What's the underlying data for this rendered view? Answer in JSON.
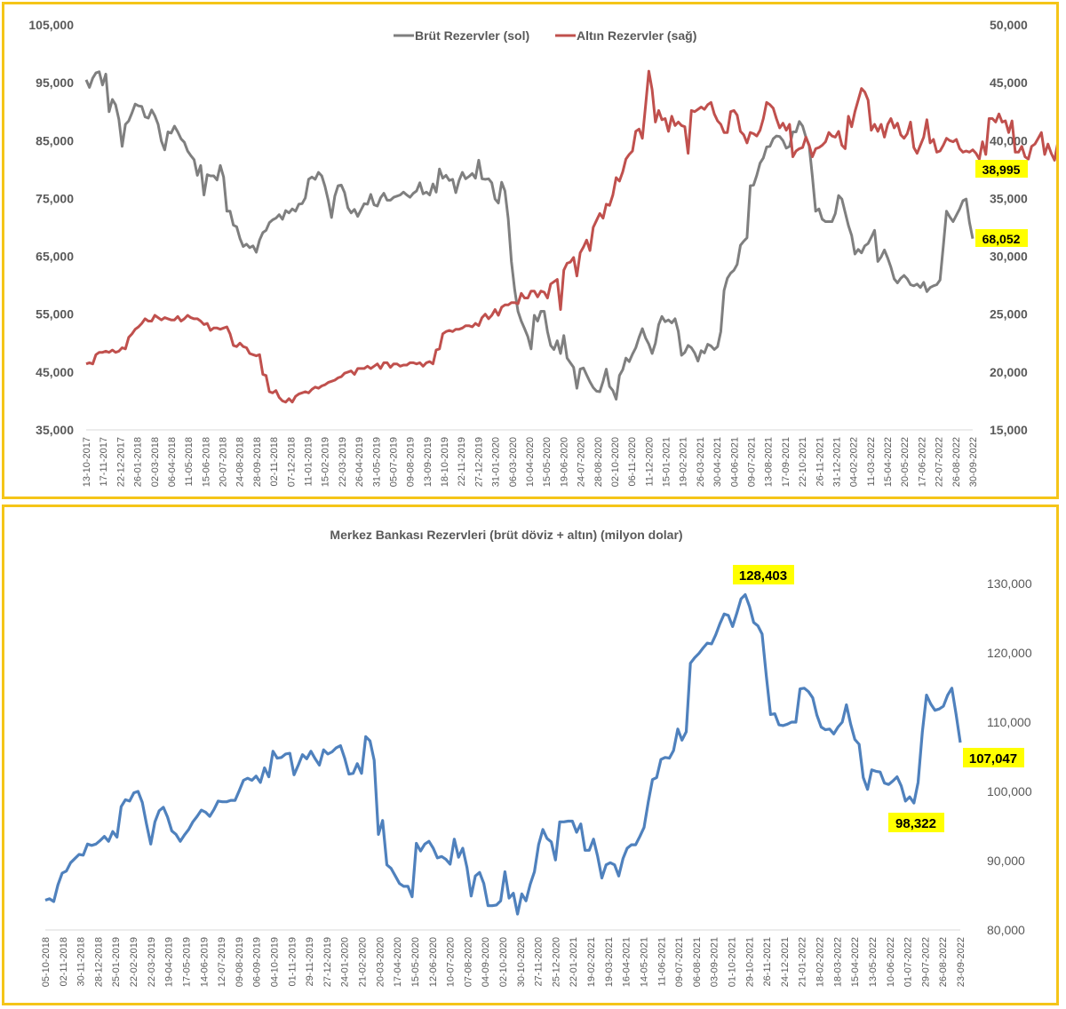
{
  "colors": {
    "frame": "#f5c518",
    "gross": "#7f7f7f",
    "gold": "#c0504d",
    "total": "#4f81bd",
    "highlight": "#ffff00",
    "axis_text": "#595959"
  },
  "chart_data": [
    {
      "type": "line",
      "title": "",
      "legend_position": "top-center",
      "y_left": {
        "lim": [
          35000,
          105000
        ],
        "ticks": [
          "35,000",
          "45,000",
          "55,000",
          "65,000",
          "75,000",
          "85,000",
          "95,000",
          "105,000"
        ]
      },
      "y_right": {
        "lim": [
          15000,
          50000
        ],
        "ticks": [
          "15,000",
          "20,000",
          "25,000",
          "30,000",
          "35,000",
          "40,000",
          "45,000",
          "50,000"
        ]
      },
      "x_tick_labels": [
        "13-10-2017",
        "17-11-2017",
        "22-12-2017",
        "26-01-2018",
        "02-03-2018",
        "06-04-2018",
        "11-05-2018",
        "15-06-2018",
        "20-07-2018",
        "24-08-2018",
        "28-09-2018",
        "02-11-2018",
        "07-12-2018",
        "11-01-2019",
        "15-02-2019",
        "22-03-2019",
        "26-04-2019",
        "31-05-2019",
        "05-07-2019",
        "09-08-2019",
        "13-09-2019",
        "18-10-2019",
        "22-11-2019",
        "27-12-2019",
        "31-01-2020",
        "06-03-2020",
        "10-04-2020",
        "15-05-2020",
        "19-06-2020",
        "24-07-2020",
        "28-08-2020",
        "02-10-2020",
        "06-11-2020",
        "11-12-2020",
        "15-01-2021",
        "19-02-2021",
        "26-03-2021",
        "30-04-2021",
        "04-06-2021",
        "09-07-2021",
        "13-08-2021",
        "17-09-2021",
        "22-10-2021",
        "26-11-2021",
        "31-12-2021",
        "04-02-2022",
        "11-03-2022",
        "15-04-2022",
        "20-05-2022",
        "17-06-2022",
        "22-07-2022",
        "26-08-2022",
        "30-09-2022"
      ],
      "series": [
        {
          "name": "Brüt Rezervler (sol)",
          "axis": "left",
          "color": "#7f7f7f",
          "last_label": "68,052",
          "values": [
            95500,
            94200,
            95800,
            96700,
            96900,
            94600,
            96500,
            90000,
            92100,
            91200,
            88700,
            84000,
            87800,
            88400,
            89800,
            91300,
            91000,
            90900,
            89100,
            88900,
            90300,
            89300,
            87800,
            84900,
            83400,
            86500,
            86300,
            87500,
            86500,
            85300,
            84700,
            83200,
            82400,
            81700,
            79000,
            80700,
            75600,
            79100,
            78900,
            78900,
            78200,
            80700,
            78700,
            72800,
            72800,
            70400,
            70100,
            68100,
            66700,
            67100,
            66500,
            66800,
            65700,
            67800,
            69100,
            69500,
            70800,
            71300,
            71600,
            72200,
            71400,
            72900,
            72500,
            73200,
            72800,
            74000,
            74100,
            75100,
            78300,
            78700,
            78300,
            79500,
            78900,
            77100,
            74700,
            71700,
            75400,
            77200,
            77300,
            76000,
            73400,
            72500,
            73100,
            71900,
            73000,
            74100,
            74000,
            75700,
            73900,
            73700,
            75100,
            75900,
            74700,
            74700,
            75200,
            75400,
            75600,
            76100,
            75600,
            75200,
            75900,
            76300,
            77700,
            75800,
            76100,
            75600,
            77500,
            76100,
            80100,
            78500,
            79000,
            78100,
            78300,
            76000,
            78100,
            79500,
            78400,
            78800,
            79300,
            78500,
            81600,
            78400,
            78300,
            78400,
            77700,
            74900,
            74200,
            77800,
            76300,
            71500,
            64100,
            59200,
            55500,
            53800,
            52500,
            51100,
            49000,
            54800,
            53800,
            55500,
            55500,
            52000,
            49600,
            48900,
            50400,
            48200,
            51300,
            47400,
            46600,
            45800,
            42200,
            45500,
            45700,
            44500,
            43300,
            42300,
            41700,
            41600,
            43400,
            45500,
            42500,
            41800,
            40300,
            44400,
            45400,
            47400,
            46800,
            48100,
            49200,
            51000,
            52500,
            50900,
            49800,
            48200,
            50000,
            53200,
            54600,
            53700,
            54000,
            53500,
            54200,
            52000,
            47900,
            48400,
            49600,
            49200,
            48300,
            46900,
            48700,
            48300,
            49800,
            49500,
            48900,
            49400,
            52000,
            59100,
            61200,
            62100,
            62600,
            63600,
            66900,
            67600,
            68200,
            77200,
            77300,
            79000,
            81100,
            82000,
            83900,
            84000,
            85300,
            85800,
            85700,
            85000,
            83700,
            84000,
            86500,
            86500,
            88300,
            87500,
            85600,
            84100,
            78800,
            72800,
            73200,
            71400,
            71000,
            71000,
            71000,
            72400,
            75500,
            74900,
            72600,
            70300,
            68600,
            65400,
            66200,
            65600,
            66800,
            67200,
            68300,
            69500,
            64100,
            64900,
            66100,
            64700,
            63100,
            61100,
            60400,
            61200,
            61700,
            61100,
            60100,
            59900,
            60200,
            59600,
            60500,
            58900,
            59600,
            59900,
            60100,
            60900,
            66800,
            72800,
            71800,
            71000,
            72100,
            73200,
            74600,
            74900,
            70900,
            68052
          ]
        },
        {
          "name": "Altın Rezervler (sağ)",
          "axis": "right",
          "color": "#c0504d",
          "last_label": "38,995",
          "values": [
            20700,
            20800,
            20700,
            21500,
            21700,
            21700,
            21800,
            21700,
            21900,
            21700,
            21800,
            22100,
            22000,
            23000,
            23300,
            23700,
            23900,
            24200,
            24600,
            24400,
            24400,
            24900,
            24700,
            24500,
            24700,
            24600,
            24500,
            24500,
            24800,
            24400,
            24600,
            24900,
            24700,
            24600,
            24600,
            24400,
            24100,
            24200,
            23600,
            23800,
            23800,
            23700,
            23800,
            23900,
            23300,
            22300,
            22200,
            22500,
            22200,
            22100,
            21600,
            21500,
            21400,
            21500,
            19800,
            19700,
            18300,
            18200,
            18400,
            17800,
            17500,
            17400,
            17700,
            17400,
            17900,
            18100,
            18200,
            18300,
            18200,
            18500,
            18700,
            18600,
            18800,
            18900,
            19100,
            19200,
            19300,
            19500,
            19600,
            19900,
            20000,
            20100,
            19800,
            20300,
            20300,
            20300,
            20500,
            20300,
            20500,
            20700,
            20300,
            20800,
            20800,
            20400,
            20700,
            20700,
            20500,
            20600,
            20600,
            20800,
            20800,
            20700,
            20800,
            20500,
            20800,
            20900,
            20700,
            21900,
            22000,
            23300,
            23500,
            23600,
            23500,
            23700,
            23700,
            23800,
            24000,
            24000,
            23900,
            24200,
            24000,
            24700,
            25000,
            24600,
            24900,
            25400,
            24900,
            25600,
            25800,
            25800,
            26000,
            26000,
            25900,
            26800,
            26400,
            26400,
            27000,
            27000,
            26500,
            27000,
            26900,
            26400,
            27600,
            27800,
            28000,
            25400,
            28800,
            29400,
            29500,
            29900,
            28300,
            30300,
            30800,
            31400,
            30500,
            32500,
            33100,
            33700,
            33300,
            34500,
            34400,
            35300,
            36800,
            36500,
            37300,
            38400,
            38800,
            39100,
            40800,
            41000,
            40200,
            43000,
            46000,
            44400,
            41600,
            42600,
            41800,
            41900,
            40800,
            42100,
            41300,
            41600,
            41300,
            41200,
            38900,
            42600,
            42500,
            42700,
            42900,
            42700,
            43100,
            43300,
            42300,
            41700,
            41400,
            40700,
            40700,
            42500,
            42600,
            42200,
            40800,
            40500,
            39800,
            40700,
            40600,
            40400,
            40900,
            41900,
            43300,
            43100,
            42800,
            41900,
            41100,
            41500,
            40900,
            41400,
            38600,
            39100,
            39300,
            39400,
            40300,
            39600,
            38600,
            39300,
            39400,
            39600,
            39900,
            40700,
            40400,
            40300,
            40800,
            39600,
            39300,
            42100,
            41200,
            42500,
            43500,
            44500,
            44200,
            43500,
            40900,
            41400,
            40800,
            41400,
            40300,
            41400,
            41900,
            41100,
            41500,
            40500,
            40200,
            40600,
            41600,
            39400,
            38900,
            39600,
            40300,
            41800,
            39800,
            40100,
            39000,
            39100,
            39600,
            40200,
            40000,
            39900,
            40100,
            39300,
            39000,
            39100,
            39000,
            39200,
            38900,
            38400,
            39900,
            38800,
            41900,
            41900,
            41600,
            42300,
            41600,
            41700,
            40700,
            41700,
            39000,
            39000,
            39500,
            38600,
            38400,
            39500,
            39700,
            40200,
            40700,
            38800,
            39700,
            38900,
            38300,
            39800,
            39700,
            39500,
            39200,
            38800,
            39900,
            39000,
            38200,
            38800,
            40500,
            40300,
            40600,
            40900,
            40700,
            39600,
            40200,
            39000,
            39700,
            39400,
            38995
          ]
        }
      ]
    },
    {
      "type": "line",
      "title": "Merkez Bankası Rezervleri (brüt döviz + altın) (milyon dolar)",
      "y_right": {
        "lim": [
          80000,
          130000
        ],
        "ticks": [
          "80,000",
          "90,000",
          "100,000",
          "110,000",
          "120,000",
          "130,000"
        ]
      },
      "x_tick_labels": [
        "05-10-2018",
        "02-11-2018",
        "30-11-2018",
        "28-12-2018",
        "25-01-2019",
        "22-02-2019",
        "22-03-2019",
        "19-04-2019",
        "17-05-2019",
        "14-06-2019",
        "12-07-2019",
        "09-08-2019",
        "06-09-2019",
        "04-10-2019",
        "01-11-2019",
        "29-11-2019",
        "27-12-2019",
        "24-01-2020",
        "21-02-2020",
        "20-03-2020",
        "17-04-2020",
        "15-05-2020",
        "12-06-2020",
        "10-07-2020",
        "07-08-2020",
        "04-09-2020",
        "02-10-2020",
        "30-10-2020",
        "27-11-2020",
        "25-12-2020",
        "22-01-2021",
        "19-02-2021",
        "19-03-2021",
        "16-04-2021",
        "14-05-2021",
        "11-06-2021",
        "09-07-2021",
        "06-08-2021",
        "03-09-2021",
        "01-10-2021",
        "29-10-2021",
        "26-11-2021",
        "24-12-2021",
        "21-01-2022",
        "18-02-2022",
        "18-03-2022",
        "15-04-2022",
        "13-05-2022",
        "10-06-2022",
        "01-07-2022",
        "29-07-2022",
        "26-08-2022",
        "23-09-2022"
      ],
      "series": [
        {
          "name": "",
          "color": "#4f81bd",
          "values": [
            84300,
            84500,
            84100,
            86500,
            88200,
            88500,
            89700,
            90300,
            90900,
            90800,
            92400,
            92200,
            92400,
            92900,
            93500,
            92800,
            94200,
            93400,
            97800,
            98800,
            98600,
            99800,
            100000,
            98400,
            95300,
            92400,
            95600,
            97200,
            97700,
            96300,
            94300,
            93800,
            92800,
            93700,
            94500,
            95600,
            96400,
            97300,
            97000,
            96400,
            97400,
            98600,
            98500,
            98500,
            98700,
            98700,
            100100,
            101600,
            101900,
            101600,
            102200,
            101300,
            103400,
            102100,
            105800,
            104800,
            104900,
            105400,
            105500,
            102400,
            103800,
            105300,
            104700,
            105800,
            104700,
            103800,
            106000,
            105400,
            105700,
            106300,
            106600,
            104800,
            102500,
            102600,
            104000,
            102600,
            107900,
            107300,
            104500,
            93800,
            95800,
            89400,
            88900,
            87800,
            86700,
            86300,
            86300,
            84800,
            92500,
            91400,
            92400,
            92800,
            91800,
            90400,
            90600,
            90200,
            89500,
            93100,
            90500,
            91800,
            89000,
            84900,
            87800,
            88300,
            86700,
            83500,
            83500,
            83600,
            84200,
            88400,
            84600,
            85300,
            82300,
            85200,
            84200,
            86600,
            88400,
            92300,
            94500,
            93200,
            92700,
            90100,
            95600,
            95600,
            95700,
            95700,
            94100,
            95300,
            91500,
            91500,
            93100,
            90600,
            87500,
            89400,
            89700,
            89400,
            87800,
            90300,
            91800,
            92300,
            92300,
            93500,
            94800,
            98500,
            101700,
            102000,
            104600,
            104900,
            104800,
            105900,
            109000,
            107400,
            108600,
            118500,
            119300,
            119900,
            120700,
            121400,
            121300,
            122600,
            124200,
            125600,
            125400,
            123800,
            125700,
            127800,
            128403,
            126700,
            124400,
            123900,
            122700,
            116600,
            111100,
            111200,
            109600,
            109500,
            109700,
            110000,
            110000,
            114800,
            114900,
            114400,
            113500,
            111000,
            109300,
            108900,
            109000,
            108300,
            109300,
            110000,
            112500,
            109700,
            107500,
            106800,
            102000,
            100300,
            103100,
            102900,
            102800,
            101200,
            101000,
            101500,
            102100,
            100800,
            98600,
            99200,
            98322,
            101300,
            108600,
            113900,
            112600,
            111700,
            111900,
            112300,
            113900,
            114900,
            111100,
            107047
          ]
        }
      ],
      "annotations": [
        {
          "text": "128,403",
          "position": "peak"
        },
        {
          "text": "98,322",
          "position": "low"
        },
        {
          "text": "107,047",
          "position": "last"
        }
      ]
    }
  ]
}
